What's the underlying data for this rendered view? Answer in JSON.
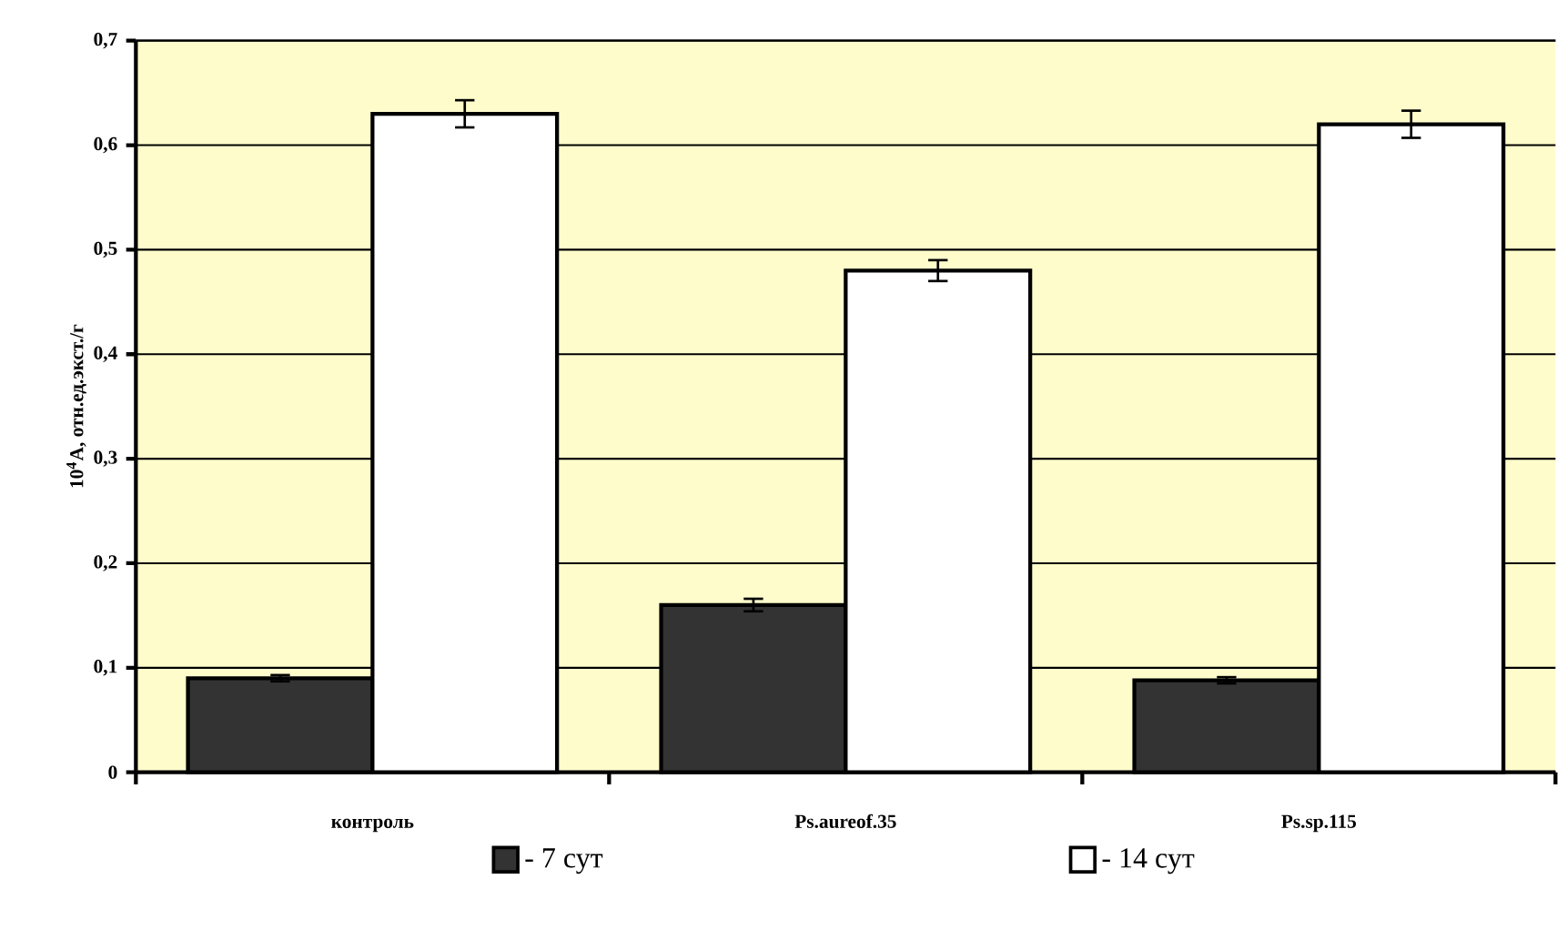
{
  "chart_data": {
    "type": "bar",
    "ylabel": "10$^{4}$A, отн.ед.экст./г",
    "categories": [
      "контроль",
      "Ps.aureof.35",
      "Ps.sp.115"
    ],
    "series": [
      {
        "name": "- 7 сут",
        "color": "#333333",
        "values": [
          0.09,
          0.16,
          0.088
        ],
        "errors": [
          0.003,
          0.006,
          0.003
        ]
      },
      {
        "name": "- 14 сут",
        "color": "#ffffff",
        "values": [
          0.63,
          0.48,
          0.62
        ],
        "errors": [
          0.013,
          0.01,
          0.013
        ]
      }
    ],
    "ylim": [
      0,
      0.7
    ],
    "yticks": [
      0,
      {
        "value": 0.1,
        "label": "0,1"
      },
      {
        "value": 0.2,
        "label": "0,2"
      },
      {
        "value": 0.3,
        "label": "0,3"
      },
      {
        "value": 0.4,
        "label": "0,4"
      },
      {
        "value": 0.5,
        "label": "0,5"
      },
      {
        "value": 0.6,
        "label": "0,6"
      },
      {
        "value": 0.7,
        "label": "0,7"
      }
    ],
    "grid": "y",
    "legend": "bottom"
  }
}
